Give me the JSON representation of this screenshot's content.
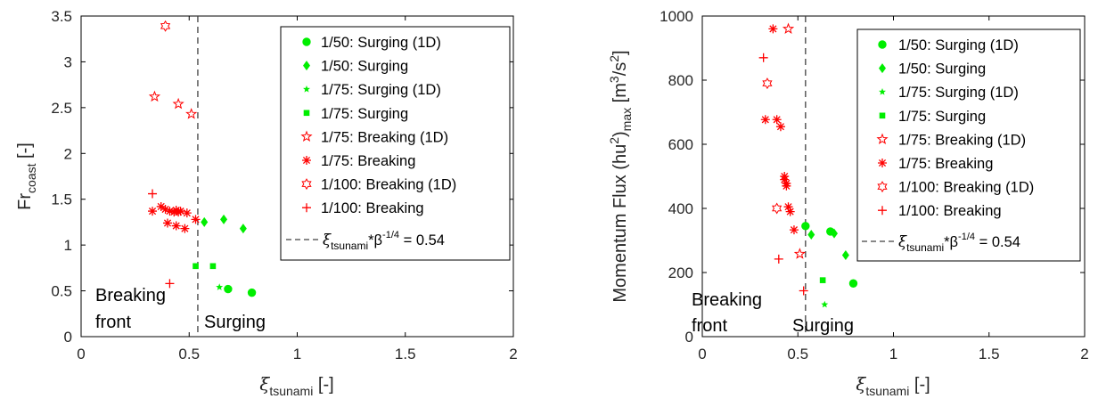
{
  "chart_data": [
    {
      "type": "scatter",
      "xlabel_symbol": "ξ",
      "xlabel_sub": "tsunami",
      "xlabel_unit": " [-]",
      "ylabel_main": "Fr",
      "ylabel_sub": "coast",
      "ylabel_unit": " [-]",
      "xlim": [
        0,
        2
      ],
      "ylim": [
        0,
        3.5
      ],
      "xticks": [
        0,
        0.5,
        1,
        1.5,
        2
      ],
      "xtick_labels": [
        "0",
        "0.5",
        "1",
        "1.5",
        "2"
      ],
      "yticks": [
        0,
        0.5,
        1,
        1.5,
        2,
        2.5,
        3,
        3.5
      ],
      "ytick_labels": [
        "0",
        "0.5",
        "1",
        "1.5",
        "2",
        "2.5",
        "3",
        "3.5"
      ],
      "threshold_x": 0.54,
      "region_labels": {
        "left_line1": "Breaking",
        "left_line2": "front",
        "right": "Surging"
      },
      "legend_position": "top-right",
      "series": [
        {
          "name": "1/50: Surging (1D)",
          "marker": "circle",
          "color": "#00ee00",
          "points": [
            [
              0.68,
              0.52
            ],
            [
              0.79,
              0.48
            ]
          ]
        },
        {
          "name": "1/50: Surging",
          "marker": "diamond",
          "color": "#00ee00",
          "points": [
            [
              0.57,
              1.25
            ],
            [
              0.66,
              1.28
            ],
            [
              0.75,
              1.18
            ]
          ]
        },
        {
          "name": "1/75: Surging (1D)",
          "marker": "smallstar",
          "color": "#00ee00",
          "points": [
            [
              0.64,
              0.54
            ]
          ]
        },
        {
          "name": "1/75: Surging",
          "marker": "square",
          "color": "#00ee00",
          "points": [
            [
              0.53,
              0.77
            ],
            [
              0.61,
              0.77
            ]
          ]
        },
        {
          "name": "1/75: Breaking (1D)",
          "marker": "pentagram",
          "color": "#ff0000",
          "points": [
            [
              0.34,
              2.62
            ],
            [
              0.45,
              2.54
            ],
            [
              0.51,
              2.43
            ]
          ]
        },
        {
          "name": "1/75: Breaking",
          "marker": "asterisk",
          "color": "#ff0000",
          "points": [
            [
              0.33,
              1.37
            ],
            [
              0.37,
              1.42
            ],
            [
              0.39,
              1.39
            ],
            [
              0.4,
              1.24
            ],
            [
              0.41,
              1.37
            ],
            [
              0.43,
              1.36
            ],
            [
              0.44,
              1.21
            ],
            [
              0.44,
              1.38
            ],
            [
              0.45,
              1.36
            ],
            [
              0.46,
              1.37
            ],
            [
              0.48,
              1.18
            ],
            [
              0.49,
              1.35
            ],
            [
              0.53,
              1.28
            ]
          ]
        },
        {
          "name": "1/100: Breaking (1D)",
          "marker": "hexagram",
          "color": "#ff0000",
          "points": [
            [
              0.39,
              3.39
            ]
          ]
        },
        {
          "name": "1/100: Breaking",
          "marker": "plus",
          "color": "#ff0000",
          "points": [
            [
              0.33,
              1.56
            ],
            [
              0.41,
              0.58
            ]
          ]
        }
      ],
      "threshold_legend": {
        "symbol": "ξ",
        "sub": "tsunami",
        "middle": "*β",
        "sup": "-1/4",
        "tail": " = 0.54"
      }
    },
    {
      "type": "scatter",
      "xlabel_symbol": "ξ",
      "xlabel_sub": "tsunami",
      "xlabel_unit": " [-]",
      "ylabel_main": "Momentum Flux (hu",
      "ylabel_sup": "2",
      "ylabel_mid": ")",
      "ylabel_sub": "max",
      "ylabel_unit_a": " [m",
      "ylabel_unit_sup": "3",
      "ylabel_unit_b": "/s",
      "ylabel_unit_sup2": "2",
      "ylabel_unit_c": "]",
      "xlim": [
        0,
        2
      ],
      "ylim": [
        0,
        1000
      ],
      "xticks": [
        0,
        0.5,
        1,
        1.5,
        2
      ],
      "xtick_labels": [
        "0",
        "0.5",
        "1",
        "1.5",
        "2"
      ],
      "yticks": [
        0,
        200,
        400,
        600,
        800,
        1000
      ],
      "ytick_labels": [
        "0",
        "200",
        "400",
        "600",
        "800",
        "1000"
      ],
      "threshold_x": 0.54,
      "region_labels": {
        "left_line1": "Breaking",
        "left_line2": "front",
        "right": "Surging"
      },
      "legend_position": "top-right",
      "series": [
        {
          "name": "1/50: Surging (1D)",
          "marker": "circle",
          "color": "#00ee00",
          "points": [
            [
              0.54,
              345
            ],
            [
              0.67,
              328
            ],
            [
              0.79,
              166
            ]
          ]
        },
        {
          "name": "1/50: Surging",
          "marker": "diamond",
          "color": "#00ee00",
          "points": [
            [
              0.57,
              318
            ],
            [
              0.69,
              322
            ],
            [
              0.75,
              254
            ]
          ]
        },
        {
          "name": "1/75: Surging (1D)",
          "marker": "smallstar",
          "color": "#00ee00",
          "points": [
            [
              0.64,
              100
            ]
          ]
        },
        {
          "name": "1/75: Surging",
          "marker": "square",
          "color": "#00ee00",
          "points": [
            [
              0.63,
              176
            ]
          ]
        },
        {
          "name": "1/75: Breaking (1D)",
          "marker": "pentagram",
          "color": "#ff0000",
          "points": [
            [
              0.45,
              960
            ],
            [
              0.51,
              258
            ]
          ]
        },
        {
          "name": "1/75: Breaking",
          "marker": "asterisk",
          "color": "#ff0000",
          "points": [
            [
              0.37,
              960
            ],
            [
              0.33,
              677
            ],
            [
              0.39,
              677
            ],
            [
              0.41,
              655
            ],
            [
              0.43,
              500
            ],
            [
              0.43,
              490
            ],
            [
              0.44,
              478
            ],
            [
              0.44,
              470
            ],
            [
              0.45,
              405
            ],
            [
              0.46,
              390
            ],
            [
              0.48,
              333
            ]
          ]
        },
        {
          "name": "1/100: Breaking (1D)",
          "marker": "hexagram",
          "color": "#ff0000",
          "points": [
            [
              0.34,
              790
            ],
            [
              0.39,
              400
            ]
          ]
        },
        {
          "name": "1/100: Breaking",
          "marker": "plus",
          "color": "#ff0000",
          "points": [
            [
              0.32,
              870
            ],
            [
              0.4,
              242
            ],
            [
              0.53,
              143
            ]
          ]
        }
      ],
      "threshold_legend": {
        "symbol": "ξ",
        "sub": "tsunami",
        "middle": "*β",
        "sup": "-1/4",
        "tail": " = 0.54"
      }
    }
  ]
}
